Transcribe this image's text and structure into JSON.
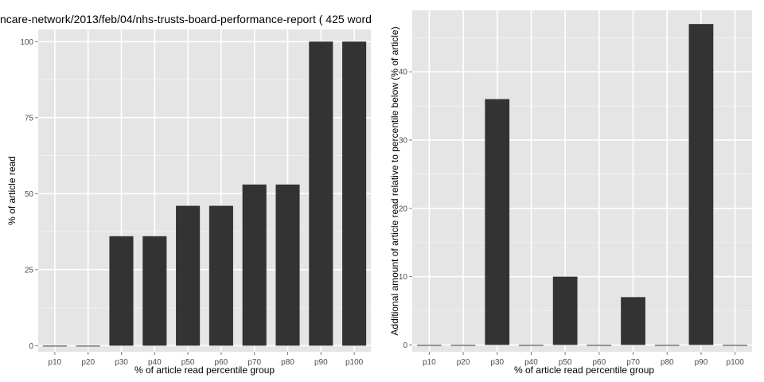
{
  "chart_data": [
    {
      "type": "bar",
      "title": "ncare-network/2013/feb/04/nhs-trusts-board-performance-report ( 425 word",
      "xlabel": "% of article read percentile group",
      "ylabel": "% of article read",
      "categories": [
        "p10",
        "p20",
        "p30",
        "p40",
        "p50",
        "p60",
        "p70",
        "p80",
        "p90",
        "p100"
      ],
      "values": [
        0,
        0,
        36,
        36,
        46,
        46,
        53,
        53,
        100,
        100
      ],
      "ylim": [
        -2,
        104
      ],
      "yticks": [
        0,
        25,
        50,
        75,
        100
      ],
      "grid": true
    },
    {
      "type": "bar",
      "title": "",
      "xlabel": "% of article read percentile group",
      "ylabel": "Additional amount of article read relative to percentile below (% of article)",
      "categories": [
        "p10",
        "p20",
        "p30",
        "p40",
        "p50",
        "p60",
        "p70",
        "p80",
        "p90",
        "p100"
      ],
      "values": [
        0,
        0,
        36,
        0,
        10,
        0,
        7,
        0,
        47,
        0
      ],
      "ylim": [
        -1,
        49
      ],
      "yticks": [
        0,
        10,
        20,
        30,
        40
      ],
      "grid": true
    }
  ],
  "colors": {
    "panel_background": "#e5e5e5",
    "grid_major": "#ffffff",
    "grid_minor": "#f2f2f2",
    "bar_fill": "#333333"
  }
}
